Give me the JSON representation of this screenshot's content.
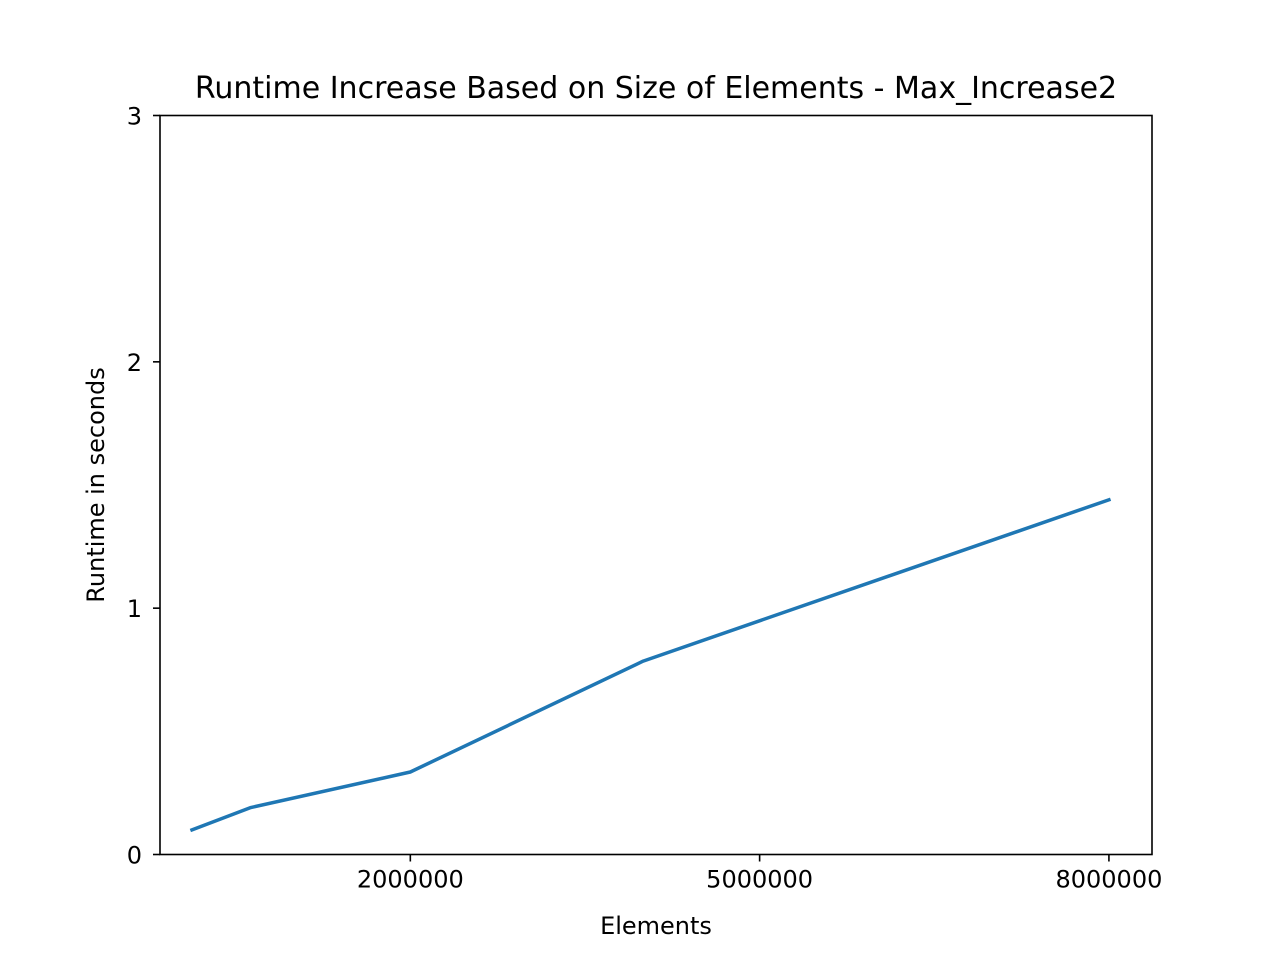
{
  "chart_data": {
    "type": "line",
    "title": "Runtime Increase Based on Size of Elements - Max_Increase2",
    "xlabel": "Elements",
    "ylabel": "Runtime in seconds",
    "xlim": [
      -150000,
      8370000
    ],
    "ylim": [
      0,
      3
    ],
    "xticks": [
      2000000,
      5000000,
      8000000
    ],
    "xtick_labels": [
      "2000000",
      "5000000",
      "8000000"
    ],
    "yticks": [
      0,
      1,
      2,
      3
    ],
    "ytick_labels": [
      "0",
      "1",
      "2",
      "3"
    ],
    "grid": false,
    "legend": "none",
    "line_color": "#1f77b4",
    "series": [
      {
        "x": [
          125000,
          625000,
          2000000,
          4000000,
          8000000
        ],
        "y": [
          0.1,
          0.19,
          0.335,
          0.785,
          1.44
        ]
      }
    ]
  }
}
